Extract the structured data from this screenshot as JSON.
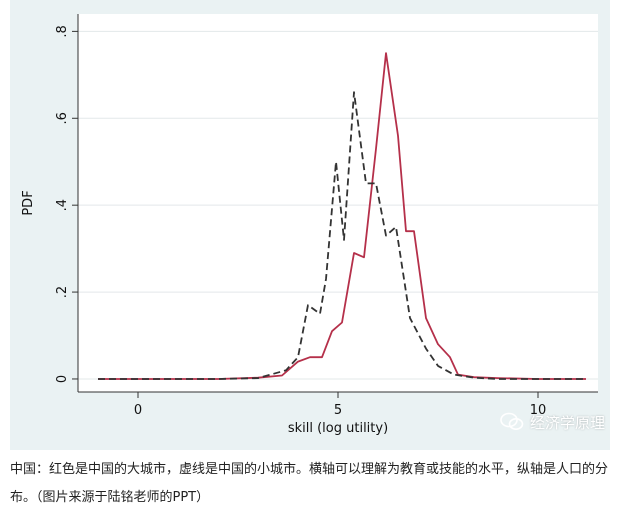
{
  "chart_data": {
    "type": "line",
    "xlabel": "skill (log utility)",
    "ylabel": "PDF",
    "xlim": [
      -1.5,
      11.5
    ],
    "ylim": [
      -0.03,
      0.84
    ],
    "x_ticks": [
      0,
      5,
      10
    ],
    "x_tick_labels": [
      "0",
      "5",
      "10"
    ],
    "y_ticks": [
      0,
      0.2,
      0.4,
      0.6,
      0.8
    ],
    "y_tick_labels": [
      "0",
      ".2",
      ".4",
      ".6",
      ".8"
    ],
    "grid": true,
    "series": [
      {
        "color": "#b5304a",
        "style": "solid",
        "x": [
          -1,
          2,
          3.0,
          3.6,
          4.0,
          4.3,
          4.6,
          4.85,
          5.1,
          5.4,
          5.65,
          5.95,
          6.2,
          6.5,
          6.7,
          6.9,
          7.2,
          7.5,
          7.8,
          8.0,
          8.4,
          9.0,
          10.0,
          11.2
        ],
        "y": [
          0,
          0,
          0.003,
          0.008,
          0.04,
          0.05,
          0.05,
          0.11,
          0.13,
          0.29,
          0.28,
          0.53,
          0.75,
          0.56,
          0.34,
          0.34,
          0.14,
          0.08,
          0.05,
          0.01,
          0.004,
          0.002,
          0,
          0
        ]
      },
      {
        "color": "#333333",
        "style": "dashed",
        "x": [
          -1,
          2,
          3.0,
          3.7,
          4.0,
          4.25,
          4.55,
          4.7,
          4.95,
          5.15,
          5.4,
          5.7,
          5.95,
          6.2,
          6.45,
          6.8,
          7.2,
          7.5,
          7.9,
          8.4,
          9.0,
          10.0,
          11.2
        ],
        "y": [
          0,
          0,
          0.002,
          0.02,
          0.05,
          0.17,
          0.15,
          0.23,
          0.5,
          0.32,
          0.66,
          0.45,
          0.45,
          0.33,
          0.35,
          0.14,
          0.07,
          0.03,
          0.01,
          0.003,
          0,
          0,
          0
        ]
      }
    ]
  },
  "watermark": {
    "icon": "wechat-icon",
    "text": "经济学原理"
  },
  "caption": {
    "text": "中国：红色是中国的大城市，虚线是中国的小城市。横轴可以理解为教育或技能的水平，纵轴是人口的分布。（图片来源于陆铭老师的PPT）"
  }
}
